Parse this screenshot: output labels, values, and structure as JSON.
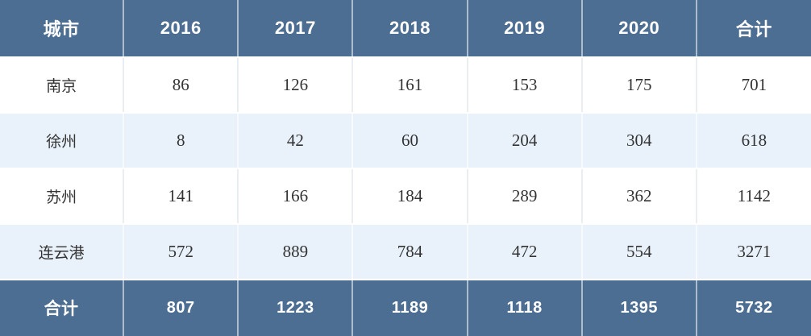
{
  "chart_data": {
    "type": "table",
    "title": "",
    "columns": [
      "城市",
      "2016",
      "2017",
      "2018",
      "2019",
      "2020",
      "合计"
    ],
    "rows": [
      [
        "南京",
        86,
        126,
        161,
        153,
        175,
        701
      ],
      [
        "徐州",
        8,
        42,
        60,
        204,
        304,
        618
      ],
      [
        "苏州",
        141,
        166,
        184,
        289,
        362,
        1142
      ],
      [
        "连云港",
        572,
        889,
        784,
        472,
        554,
        3271
      ]
    ],
    "footer": [
      "合计",
      807,
      1223,
      1189,
      1118,
      1395,
      5732
    ],
    "layout": {
      "header_fill": "#4d6e93",
      "header_text_color": "#ffffff",
      "alt_row_fill": "#e9f2fa",
      "row_fill": "#ffffff",
      "body_text_color": "#333333",
      "bottom_rule_color": "#3c5a7c"
    }
  }
}
